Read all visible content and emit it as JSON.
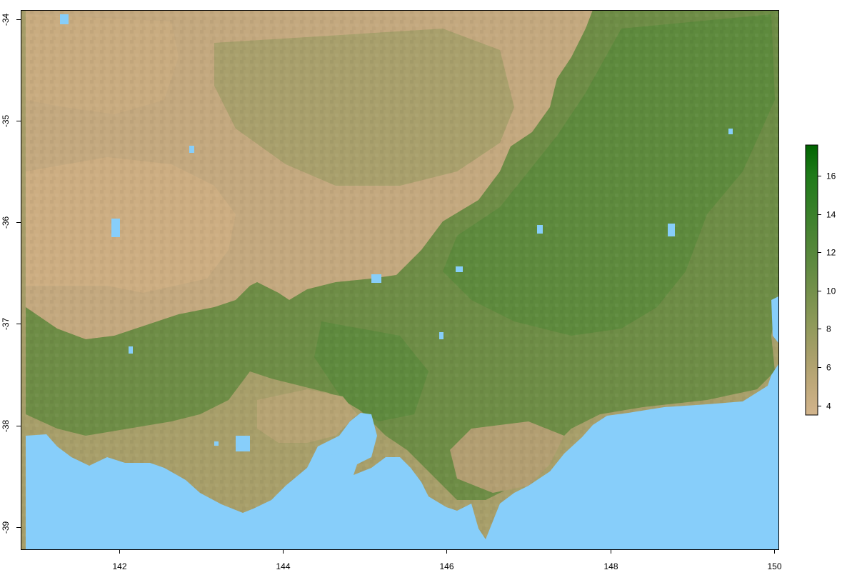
{
  "map": {
    "type": "raster",
    "colors": {
      "water": "#87CEFA",
      "ramp": [
        "#D2B48C",
        "#BFA97A",
        "#A89F6A",
        "#8F9A5A",
        "#77914C",
        "#5F8A40",
        "#4A8433",
        "#337F26",
        "#1E7A19",
        "#006400"
      ]
    },
    "x_axis": {
      "ticks": [
        142,
        144,
        146,
        148,
        150
      ],
      "tick_labels": [
        "142",
        "144",
        "146",
        "148",
        "150"
      ],
      "range": [
        140.8,
        150.05
      ]
    },
    "y_axis": {
      "ticks": [
        -34,
        -35,
        -36,
        -37,
        -38,
        -39
      ],
      "tick_labels": [
        "-34",
        "-35",
        "-36",
        "-37",
        "-38",
        "-39"
      ],
      "range": [
        -39.22,
        -33.91
      ]
    },
    "legend": {
      "ticks": [
        4,
        6,
        8,
        10,
        12,
        14,
        16
      ],
      "tick_labels": [
        "4",
        "6",
        "8",
        "10",
        "12",
        "14",
        "16"
      ],
      "range": [
        3.5,
        17.6
      ],
      "placement": "right"
    }
  }
}
